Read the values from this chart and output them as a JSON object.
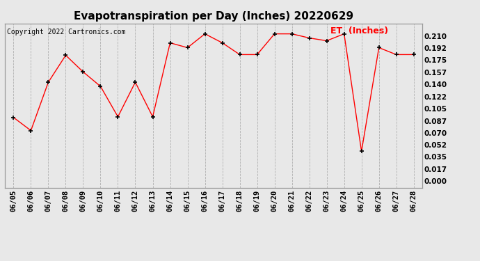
{
  "title": "Evapotranspiration per Day (Inches) 20220629",
  "copyright": "Copyright 2022 Cartronics.com",
  "legend_label": "ET  (Inches)",
  "dates": [
    "06/05",
    "06/06",
    "06/07",
    "06/08",
    "06/09",
    "06/10",
    "06/11",
    "06/12",
    "06/13",
    "06/14",
    "06/15",
    "06/16",
    "06/17",
    "06/18",
    "06/19",
    "06/20",
    "06/21",
    "06/22",
    "06/23",
    "06/24",
    "06/25",
    "06/26",
    "06/27",
    "06/28"
  ],
  "values": [
    0.092,
    0.073,
    0.143,
    0.182,
    0.158,
    0.137,
    0.093,
    0.143,
    0.093,
    0.2,
    0.193,
    0.213,
    0.2,
    0.183,
    0.183,
    0.213,
    0.213,
    0.207,
    0.203,
    0.213,
    0.043,
    0.193,
    0.183,
    0.183
  ],
  "line_color": "red",
  "marker": "+",
  "marker_color": "black",
  "bg_color": "#e8e8e8",
  "grid_color": "#b0b0b0",
  "yticks": [
    0.0,
    0.017,
    0.035,
    0.052,
    0.07,
    0.087,
    0.105,
    0.122,
    0.14,
    0.157,
    0.175,
    0.192,
    0.21
  ],
  "ylim": [
    -0.01,
    0.228
  ],
  "title_fontsize": 11,
  "copyright_fontsize": 7,
  "legend_fontsize": 9,
  "tick_fontsize": 7.5,
  "marker_size": 5,
  "line_width": 1.0
}
